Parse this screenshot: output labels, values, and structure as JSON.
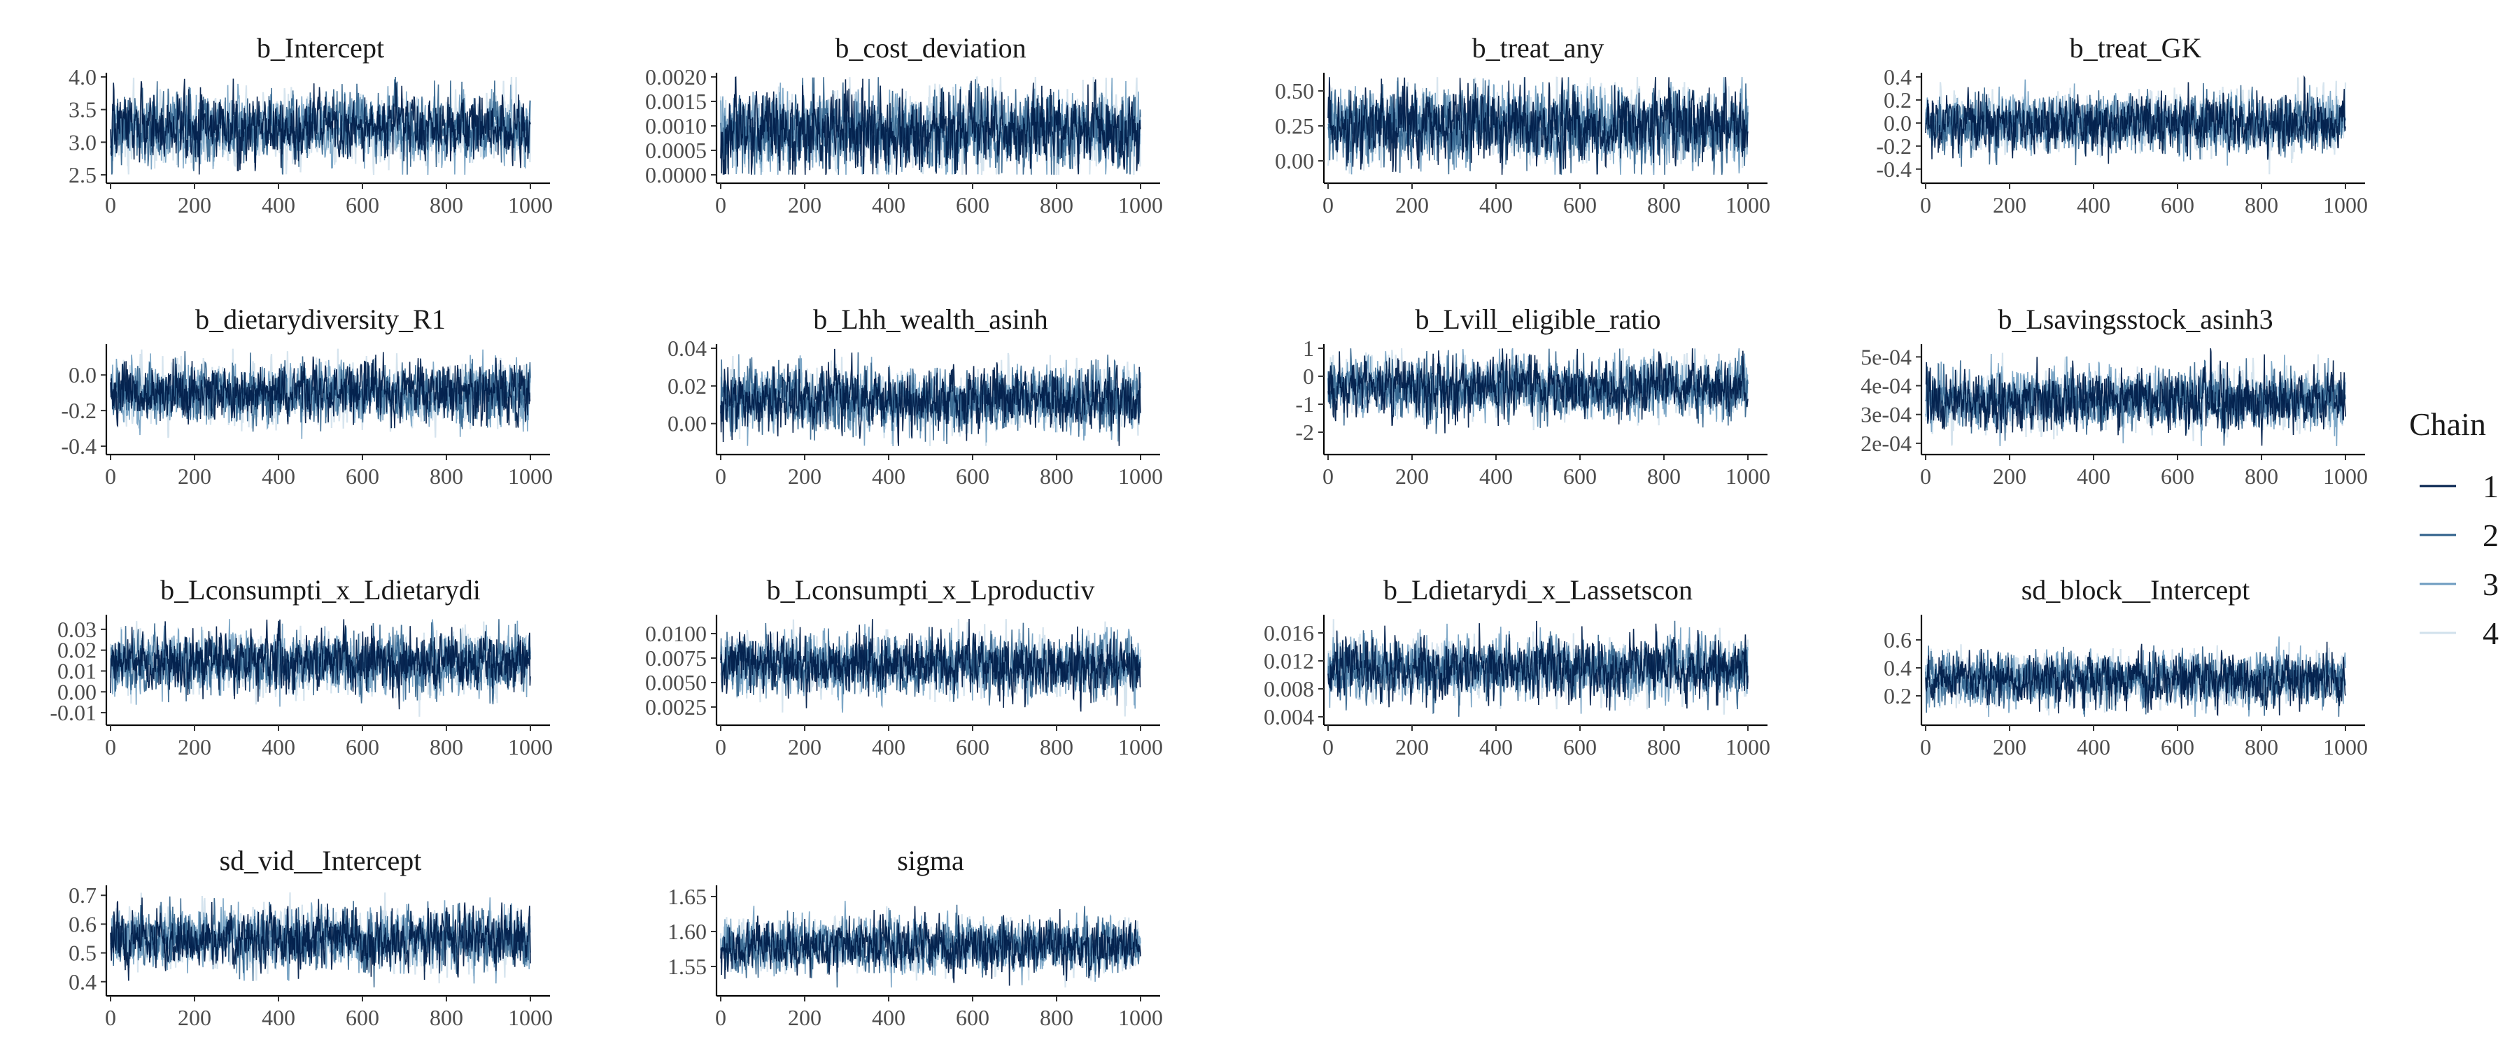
{
  "legend": {
    "title": "Chain",
    "position": "right",
    "entries": [
      {
        "label": "1",
        "color": "#011f4b"
      },
      {
        "label": "2",
        "color": "#2e5f8a"
      },
      {
        "label": "3",
        "color": "#6e9cc0"
      },
      {
        "label": "4",
        "color": "#d1e1ec"
      }
    ]
  },
  "chart_data": [
    {
      "type": "line",
      "title": "b_Intercept",
      "xlim": [
        0,
        1000
      ],
      "ylim": [
        2.5,
        4.0
      ],
      "xticks": [
        "0",
        "200",
        "400",
        "600",
        "800",
        "1000"
      ],
      "yticks": [
        "2.5",
        "3.0",
        "3.5",
        "4.0"
      ],
      "yticks_values": [
        2.5,
        3.0,
        3.5,
        4.0
      ],
      "center": 3.2,
      "sd": 0.25,
      "series": [
        {
          "name": "1",
          "iterations": 1000
        },
        {
          "name": "2",
          "iterations": 1000
        },
        {
          "name": "3",
          "iterations": 1000
        },
        {
          "name": "4",
          "iterations": 1000
        }
      ]
    },
    {
      "type": "line",
      "title": "b_cost_deviation",
      "xlim": [
        0,
        1000
      ],
      "ylim": [
        0,
        0.002
      ],
      "xticks": [
        "0",
        "200",
        "400",
        "600",
        "800",
        "1000"
      ],
      "yticks": [
        "0.0000",
        "0.0005",
        "0.0010",
        "0.0015",
        "0.0020"
      ],
      "yticks_values": [
        0,
        0.0005,
        0.001,
        0.0015,
        0.002
      ],
      "center": 0.0009,
      "sd": 0.0004,
      "series": [
        {
          "name": "1",
          "iterations": 1000
        },
        {
          "name": "2",
          "iterations": 1000
        },
        {
          "name": "3",
          "iterations": 1000
        },
        {
          "name": "4",
          "iterations": 1000
        }
      ]
    },
    {
      "type": "line",
      "title": "b_treat_any",
      "xlim": [
        0,
        1000
      ],
      "ylim": [
        -0.1,
        0.6
      ],
      "xticks": [
        "0",
        "200",
        "400",
        "600",
        "800",
        "1000"
      ],
      "yticks": [
        "0.00",
        "0.25",
        "0.50"
      ],
      "yticks_values": [
        0,
        0.25,
        0.5
      ],
      "center": 0.25,
      "sd": 0.13,
      "series": [
        {
          "name": "1",
          "iterations": 1000
        },
        {
          "name": "2",
          "iterations": 1000
        },
        {
          "name": "3",
          "iterations": 1000
        },
        {
          "name": "4",
          "iterations": 1000
        }
      ]
    },
    {
      "type": "line",
      "title": "b_treat_GK",
      "xlim": [
        0,
        1000
      ],
      "ylim": [
        -0.45,
        0.4
      ],
      "xticks": [
        "0",
        "200",
        "400",
        "600",
        "800",
        "1000"
      ],
      "yticks": [
        "-0.4",
        "-0.2",
        "0.0",
        "0.2",
        "0.4"
      ],
      "yticks_values": [
        -0.4,
        -0.2,
        0,
        0.2,
        0.4
      ],
      "center": 0.0,
      "sd": 0.12,
      "series": [
        {
          "name": "1",
          "iterations": 1000
        },
        {
          "name": "2",
          "iterations": 1000
        },
        {
          "name": "3",
          "iterations": 1000
        },
        {
          "name": "4",
          "iterations": 1000
        }
      ]
    },
    {
      "type": "line",
      "title": "b_dietarydiversity_R1",
      "xlim": [
        0,
        1000
      ],
      "ylim": [
        -0.4,
        0.15
      ],
      "xticks": [
        "0",
        "200",
        "400",
        "600",
        "800",
        "1000"
      ],
      "yticks": [
        "-0.4",
        "-0.2",
        "0.0"
      ],
      "yticks_values": [
        -0.4,
        -0.2,
        0
      ],
      "center": -0.1,
      "sd": 0.08,
      "series": [
        {
          "name": "1",
          "iterations": 1000
        },
        {
          "name": "2",
          "iterations": 1000
        },
        {
          "name": "3",
          "iterations": 1000
        },
        {
          "name": "4",
          "iterations": 1000
        }
      ]
    },
    {
      "type": "line",
      "title": "b_Lhh_wealth_asinh",
      "xlim": [
        0,
        1000
      ],
      "ylim": [
        -0.012,
        0.04
      ],
      "xticks": [
        "0",
        "200",
        "400",
        "600",
        "800",
        "1000"
      ],
      "yticks": [
        "0.00",
        "0.02",
        "0.04"
      ],
      "yticks_values": [
        0,
        0.02,
        0.04
      ],
      "center": 0.013,
      "sd": 0.008,
      "series": [
        {
          "name": "1",
          "iterations": 1000
        },
        {
          "name": "2",
          "iterations": 1000
        },
        {
          "name": "3",
          "iterations": 1000
        },
        {
          "name": "4",
          "iterations": 1000
        }
      ]
    },
    {
      "type": "line",
      "title": "b_Lvill_eligible_ratio",
      "xlim": [
        0,
        1000
      ],
      "ylim": [
        -2.5,
        1.0
      ],
      "xticks": [
        "0",
        "200",
        "400",
        "600",
        "800",
        "1000"
      ],
      "yticks": [
        "-2",
        "-1",
        "0",
        "1"
      ],
      "yticks_values": [
        -2,
        -1,
        0,
        1
      ],
      "center": -0.4,
      "sd": 0.5,
      "series": [
        {
          "name": "1",
          "iterations": 1000
        },
        {
          "name": "2",
          "iterations": 1000
        },
        {
          "name": "3",
          "iterations": 1000
        },
        {
          "name": "4",
          "iterations": 1000
        }
      ]
    },
    {
      "type": "line",
      "title": "b_Lsavingsstock_asinh3",
      "xlim": [
        0,
        1000
      ],
      "ylim": [
        0.00019,
        0.00053
      ],
      "xticks": [
        "0",
        "200",
        "400",
        "600",
        "800",
        "1000"
      ],
      "yticks": [
        "2e-04",
        "3e-04",
        "4e-04",
        "5e-04"
      ],
      "yticks_values": [
        0.0002,
        0.0003,
        0.0004,
        0.0005
      ],
      "center": 0.00035,
      "sd": 5e-05,
      "series": [
        {
          "name": "1",
          "iterations": 1000
        },
        {
          "name": "2",
          "iterations": 1000
        },
        {
          "name": "3",
          "iterations": 1000
        },
        {
          "name": "4",
          "iterations": 1000
        }
      ]
    },
    {
      "type": "line",
      "title": "b_Lconsumpti_x_Ldietarydi",
      "xlim": [
        0,
        1000
      ],
      "ylim": [
        -0.012,
        0.035
      ],
      "xticks": [
        "0",
        "200",
        "400",
        "600",
        "800",
        "1000"
      ],
      "yticks": [
        "-0.01",
        "0.00",
        "0.01",
        "0.02",
        "0.03"
      ],
      "yticks_values": [
        -0.01,
        0,
        0.01,
        0.02,
        0.03
      ],
      "center": 0.014,
      "sd": 0.007,
      "series": [
        {
          "name": "1",
          "iterations": 1000
        },
        {
          "name": "2",
          "iterations": 1000
        },
        {
          "name": "3",
          "iterations": 1000
        },
        {
          "name": "4",
          "iterations": 1000
        }
      ]
    },
    {
      "type": "line",
      "title": "b_Lconsumpti_x_Lproductiv",
      "xlim": [
        0,
        1000
      ],
      "ylim": [
        0.0015,
        0.0115
      ],
      "xticks": [
        "0",
        "200",
        "400",
        "600",
        "800",
        "1000"
      ],
      "yticks": [
        "0.0025",
        "0.0050",
        "0.0075",
        "0.0100"
      ],
      "yticks_values": [
        0.0025,
        0.005,
        0.0075,
        0.01
      ],
      "center": 0.0068,
      "sd": 0.0015,
      "series": [
        {
          "name": "1",
          "iterations": 1000
        },
        {
          "name": "2",
          "iterations": 1000
        },
        {
          "name": "3",
          "iterations": 1000
        },
        {
          "name": "4",
          "iterations": 1000
        }
      ]
    },
    {
      "type": "line",
      "title": "b_Ldietarydi_x_Lassetscon",
      "xlim": [
        0,
        1000
      ],
      "ylim": [
        0.004,
        0.018
      ],
      "xticks": [
        "0",
        "200",
        "400",
        "600",
        "800",
        "1000"
      ],
      "yticks": [
        "0.004",
        "0.008",
        "0.012",
        "0.016"
      ],
      "yticks_values": [
        0.004,
        0.008,
        0.012,
        0.016
      ],
      "center": 0.011,
      "sd": 0.002,
      "series": [
        {
          "name": "1",
          "iterations": 1000
        },
        {
          "name": "2",
          "iterations": 1000
        },
        {
          "name": "3",
          "iterations": 1000
        },
        {
          "name": "4",
          "iterations": 1000
        }
      ]
    },
    {
      "type": "line",
      "title": "sd_block__Intercept",
      "xlim": [
        0,
        1000
      ],
      "ylim": [
        0.05,
        0.75
      ],
      "xticks": [
        "0",
        "200",
        "400",
        "600",
        "800",
        "1000"
      ],
      "yticks": [
        "0.2",
        "0.4",
        "0.6"
      ],
      "yticks_values": [
        0.2,
        0.4,
        0.6
      ],
      "center": 0.32,
      "sd": 0.09,
      "series": [
        {
          "name": "1",
          "iterations": 1000
        },
        {
          "name": "2",
          "iterations": 1000
        },
        {
          "name": "3",
          "iterations": 1000
        },
        {
          "name": "4",
          "iterations": 1000
        }
      ]
    },
    {
      "type": "line",
      "title": "sd_vid__Intercept",
      "xlim": [
        0,
        1000
      ],
      "ylim": [
        0.38,
        0.72
      ],
      "xticks": [
        "0",
        "200",
        "400",
        "600",
        "800",
        "1000"
      ],
      "yticks": [
        "0.4",
        "0.5",
        "0.6",
        "0.7"
      ],
      "yticks_values": [
        0.4,
        0.5,
        0.6,
        0.7
      ],
      "center": 0.55,
      "sd": 0.05,
      "series": [
        {
          "name": "1",
          "iterations": 1000
        },
        {
          "name": "2",
          "iterations": 1000
        },
        {
          "name": "3",
          "iterations": 1000
        },
        {
          "name": "4",
          "iterations": 1000
        }
      ]
    },
    {
      "type": "line",
      "title": "sigma",
      "xlim": [
        0,
        1000
      ],
      "ylim": [
        1.52,
        1.66
      ],
      "xticks": [
        "0",
        "200",
        "400",
        "600",
        "800",
        "1000"
      ],
      "yticks": [
        "1.55",
        "1.60",
        "1.65"
      ],
      "yticks_values": [
        1.55,
        1.6,
        1.65
      ],
      "center": 1.58,
      "sd": 0.018,
      "series": [
        {
          "name": "1",
          "iterations": 1000
        },
        {
          "name": "2",
          "iterations": 1000
        },
        {
          "name": "3",
          "iterations": 1000
        },
        {
          "name": "4",
          "iterations": 1000
        }
      ]
    }
  ]
}
